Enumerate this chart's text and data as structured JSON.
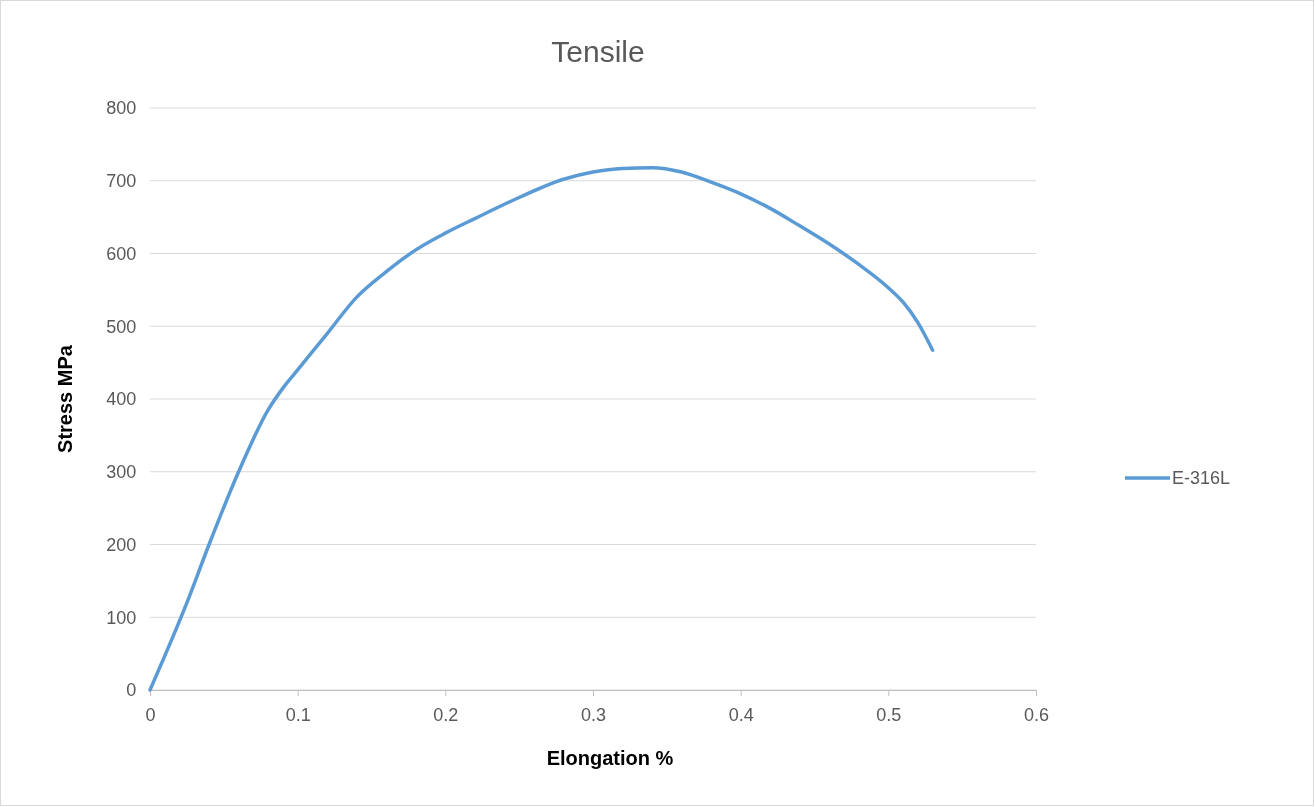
{
  "chart_data": {
    "type": "line",
    "title": "Tensile",
    "xlabel": "Elongation %",
    "ylabel": "Stress MPa",
    "xlim": [
      0,
      0.6
    ],
    "xticks": [
      0,
      0.1,
      0.2,
      0.3,
      0.4,
      0.5,
      0.6
    ],
    "ylim": [
      0,
      800
    ],
    "yticks": [
      0,
      100,
      200,
      300,
      400,
      500,
      600,
      700,
      800
    ],
    "grid": "y",
    "legend": "right",
    "marker": "none",
    "line_style": "solid",
    "series": [
      {
        "name": "E-316L",
        "color": "#5b9bd5",
        "x": [
          0,
          0.025,
          0.04,
          0.06,
          0.08,
          0.09,
          0.1,
          0.12,
          0.14,
          0.16,
          0.18,
          0.2,
          0.22,
          0.25,
          0.28,
          0.3,
          0.32,
          0.34,
          0.36,
          0.38,
          0.4,
          0.42,
          0.44,
          0.46,
          0.48,
          0.5,
          0.51,
          0.52,
          0.53
        ],
        "values": [
          0,
          120,
          200,
          300,
          385,
          415,
          440,
          490,
          540,
          575,
          605,
          628,
          648,
          677,
          702,
          712,
          717,
          718,
          712,
          698,
          682,
          662,
          638,
          613,
          585,
          553,
          533,
          505,
          467
        ]
      }
    ]
  }
}
